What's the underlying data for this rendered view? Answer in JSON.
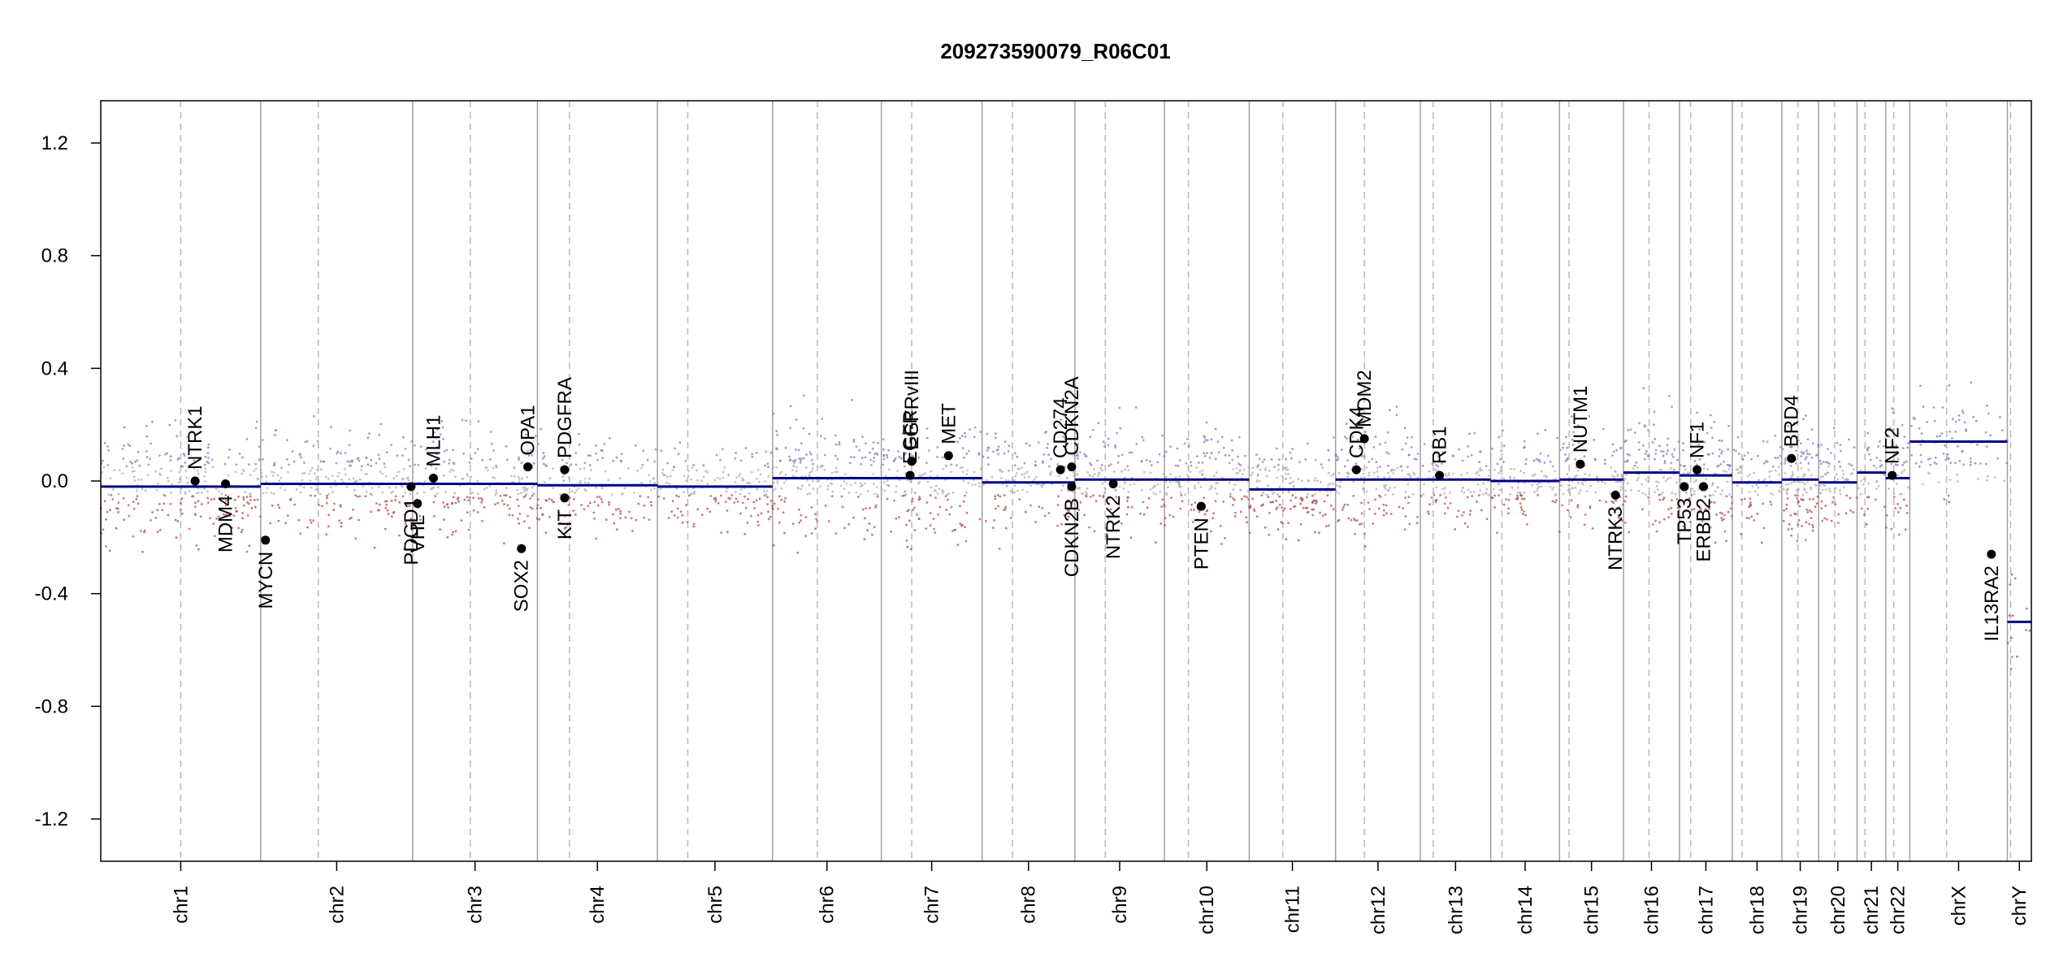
{
  "chart_data": {
    "type": "scatter",
    "title": "209273590079_R06C01",
    "xlabel": "",
    "ylabel": "",
    "ylim": [
      -1.35,
      1.35
    ],
    "yticks": [
      {
        "value": 1.2,
        "label": "1.2"
      },
      {
        "value": 0.8,
        "label": "0.8"
      },
      {
        "value": 0.4,
        "label": "0.4"
      },
      {
        "value": 0.0,
        "label": "0.0"
      },
      {
        "value": -0.4,
        "label": "-0.4"
      },
      {
        "value": -0.8,
        "label": "-0.8"
      },
      {
        "value": -1.2,
        "label": "-1.2"
      }
    ],
    "colors": {
      "segment": "#00008b",
      "gain_points": "#8080c0",
      "loss_points": "#b05050",
      "neutral_points": "#b0b0b0",
      "gene_marker": "#000000",
      "chromosome_border": "#a0a0a0",
      "centromere": "#b8b8b8"
    },
    "grid": false,
    "chromosomes": [
      {
        "name": "chr1",
        "start": 0.0,
        "end": 1.0,
        "centromere": 0.5,
        "segments": [
          {
            "x0": 0.0,
            "x1": 1.0,
            "y": -0.02
          }
        ],
        "spread": 0.1,
        "density": 1.0
      },
      {
        "name": "chr2",
        "start": 1.0,
        "end": 1.95,
        "centromere": 1.36,
        "segments": [
          {
            "x0": 1.0,
            "x1": 1.95,
            "y": -0.01
          }
        ],
        "spread": 0.09,
        "density": 0.95
      },
      {
        "name": "chr3",
        "start": 1.95,
        "end": 2.73,
        "centromere": 2.31,
        "segments": [
          {
            "x0": 1.95,
            "x1": 2.73,
            "y": -0.01
          }
        ],
        "spread": 0.09,
        "density": 0.78
      },
      {
        "name": "chr4",
        "start": 2.73,
        "end": 3.48,
        "centromere": 2.93,
        "segments": [
          {
            "x0": 2.73,
            "x1": 3.48,
            "y": -0.015
          }
        ],
        "spread": 0.08,
        "density": 0.6
      },
      {
        "name": "chr5",
        "start": 3.48,
        "end": 4.2,
        "centromere": 3.67,
        "segments": [
          {
            "x0": 3.48,
            "x1": 4.2,
            "y": -0.02
          }
        ],
        "spread": 0.08,
        "density": 0.65
      },
      {
        "name": "chr6",
        "start": 4.2,
        "end": 4.88,
        "centromere": 4.48,
        "segments": [
          {
            "x0": 4.2,
            "x1": 4.88,
            "y": 0.01
          }
        ],
        "spread": 0.1,
        "density": 0.75
      },
      {
        "name": "chr7",
        "start": 4.88,
        "end": 5.51,
        "centromere": 5.07,
        "segments": [
          {
            "x0": 4.88,
            "x1": 5.51,
            "y": 0.01
          }
        ],
        "spread": 0.1,
        "density": 0.7
      },
      {
        "name": "chr8",
        "start": 5.51,
        "end": 6.09,
        "centromere": 5.7,
        "segments": [
          {
            "x0": 5.51,
            "x1": 6.09,
            "y": -0.005
          }
        ],
        "spread": 0.09,
        "density": 0.55
      },
      {
        "name": "chr9",
        "start": 6.09,
        "end": 6.65,
        "centromere": 6.28,
        "segments": [
          {
            "x0": 6.09,
            "x1": 6.65,
            "y": 0.005
          }
        ],
        "spread": 0.09,
        "density": 0.55
      },
      {
        "name": "chr10",
        "start": 6.65,
        "end": 7.18,
        "centromere": 6.8,
        "segments": [
          {
            "x0": 6.65,
            "x1": 7.18,
            "y": 0.005
          }
        ],
        "spread": 0.09,
        "density": 0.6
      },
      {
        "name": "chr11",
        "start": 7.18,
        "end": 7.72,
        "centromere": 7.39,
        "segments": [
          {
            "x0": 7.18,
            "x1": 7.72,
            "y": -0.03
          }
        ],
        "spread": 0.08,
        "density": 0.65
      },
      {
        "name": "chr12",
        "start": 7.72,
        "end": 8.25,
        "centromere": 7.9,
        "segments": [
          {
            "x0": 7.72,
            "x1": 8.25,
            "y": 0.005
          }
        ],
        "spread": 0.09,
        "density": 0.6
      },
      {
        "name": "chr13",
        "start": 8.25,
        "end": 8.69,
        "centromere": 8.33,
        "segments": [
          {
            "x0": 8.25,
            "x1": 8.69,
            "y": 0.005
          }
        ],
        "spread": 0.08,
        "density": 0.4
      },
      {
        "name": "chr14",
        "start": 8.69,
        "end": 9.12,
        "centromere": 8.76,
        "segments": [
          {
            "x0": 8.69,
            "x1": 9.12,
            "y": 0.0
          }
        ],
        "spread": 0.08,
        "density": 0.45
      },
      {
        "name": "chr15",
        "start": 9.12,
        "end": 9.52,
        "centromere": 9.18,
        "segments": [
          {
            "x0": 9.12,
            "x1": 9.52,
            "y": 0.005
          }
        ],
        "spread": 0.09,
        "density": 0.45
      },
      {
        "name": "chr16",
        "start": 9.52,
        "end": 9.87,
        "centromere": 9.68,
        "segments": [
          {
            "x0": 9.52,
            "x1": 9.87,
            "y": 0.03
          }
        ],
        "spread": 0.1,
        "density": 0.45
      },
      {
        "name": "chr17",
        "start": 9.87,
        "end": 10.2,
        "centromere": 9.94,
        "segments": [
          {
            "x0": 9.87,
            "x1": 10.2,
            "y": 0.02
          }
        ],
        "spread": 0.1,
        "density": 0.5
      },
      {
        "name": "chr18",
        "start": 10.2,
        "end": 10.51,
        "centromere": 10.26,
        "segments": [
          {
            "x0": 10.2,
            "x1": 10.51,
            "y": -0.005
          }
        ],
        "spread": 0.08,
        "density": 0.3
      },
      {
        "name": "chr19",
        "start": 10.51,
        "end": 10.74,
        "centromere": 10.61,
        "segments": [
          {
            "x0": 10.51,
            "x1": 10.74,
            "y": 0.005
          }
        ],
        "spread": 0.1,
        "density": 0.45
      },
      {
        "name": "chr20",
        "start": 10.74,
        "end": 10.98,
        "centromere": 10.84,
        "segments": [
          {
            "x0": 10.74,
            "x1": 10.98,
            "y": -0.005
          }
        ],
        "spread": 0.08,
        "density": 0.3
      },
      {
        "name": "chr21",
        "start": 10.98,
        "end": 11.16,
        "centromere": 11.03,
        "segments": [
          {
            "x0": 10.98,
            "x1": 11.16,
            "y": 0.03
          }
        ],
        "spread": 0.08,
        "density": 0.15
      },
      {
        "name": "chr22",
        "start": 11.16,
        "end": 11.31,
        "centromere": 11.21,
        "segments": [
          {
            "x0": 11.16,
            "x1": 11.31,
            "y": 0.01
          }
        ],
        "spread": 0.1,
        "density": 0.2
      },
      {
        "name": "chrX",
        "start": 11.31,
        "end": 11.92,
        "centromere": 11.54,
        "segments": [
          {
            "x0": 11.31,
            "x1": 11.92,
            "y": 0.14
          }
        ],
        "spread": 0.1,
        "density": 0.35
      },
      {
        "name": "chrY",
        "start": 11.92,
        "end": 12.07,
        "centromere": 11.94,
        "segments": [
          {
            "x0": 11.92,
            "x1": 12.07,
            "y": -0.5
          }
        ],
        "spread": 0.15,
        "density": 0.05
      }
    ],
    "genes": [
      {
        "name": "NTRK1",
        "x": 0.59,
        "y": 0.0
      },
      {
        "name": "MDM4",
        "x": 0.78,
        "y": -0.01
      },
      {
        "name": "MYCN",
        "x": 1.03,
        "y": -0.21
      },
      {
        "name": "PDGD1",
        "x": 1.94,
        "y": -0.02
      },
      {
        "name": "VHL",
        "x": 1.98,
        "y": -0.08
      },
      {
        "name": "MLH1",
        "x": 2.08,
        "y": 0.01
      },
      {
        "name": "SOX2",
        "x": 2.63,
        "y": -0.24
      },
      {
        "name": "OPA1",
        "x": 2.67,
        "y": 0.05
      },
      {
        "name": "KIT",
        "x": 2.9,
        "y": -0.06
      },
      {
        "name": "PDGFRA",
        "x": 2.9,
        "y": 0.04
      },
      {
        "name": "EGFR",
        "x": 5.06,
        "y": 0.02
      },
      {
        "name": "EGFRvIII",
        "x": 5.07,
        "y": 0.07
      },
      {
        "name": "MET",
        "x": 5.3,
        "y": 0.09
      },
      {
        "name": "CD274",
        "x": 6.0,
        "y": 0.04
      },
      {
        "name": "CDKN2A",
        "x": 6.07,
        "y": 0.05
      },
      {
        "name": "CDKN2B",
        "x": 6.07,
        "y": -0.02
      },
      {
        "name": "NTRK2",
        "x": 6.33,
        "y": -0.01
      },
      {
        "name": "PTEN",
        "x": 6.88,
        "y": -0.09
      },
      {
        "name": "CDK4",
        "x": 7.85,
        "y": 0.04
      },
      {
        "name": "MDM2",
        "x": 7.9,
        "y": 0.15
      },
      {
        "name": "RB1",
        "x": 8.37,
        "y": 0.02
      },
      {
        "name": "NUTM1",
        "x": 9.25,
        "y": 0.06
      },
      {
        "name": "NTRK3",
        "x": 9.47,
        "y": -0.05
      },
      {
        "name": "TP53",
        "x": 9.9,
        "y": -0.02
      },
      {
        "name": "NF1",
        "x": 9.98,
        "y": 0.04
      },
      {
        "name": "ERBB2",
        "x": 10.02,
        "y": -0.02
      },
      {
        "name": "BRD4",
        "x": 10.57,
        "y": 0.08
      },
      {
        "name": "NF2",
        "x": 11.2,
        "y": 0.02
      },
      {
        "name": "IL13RA2",
        "x": 11.82,
        "y": -0.26
      }
    ]
  }
}
